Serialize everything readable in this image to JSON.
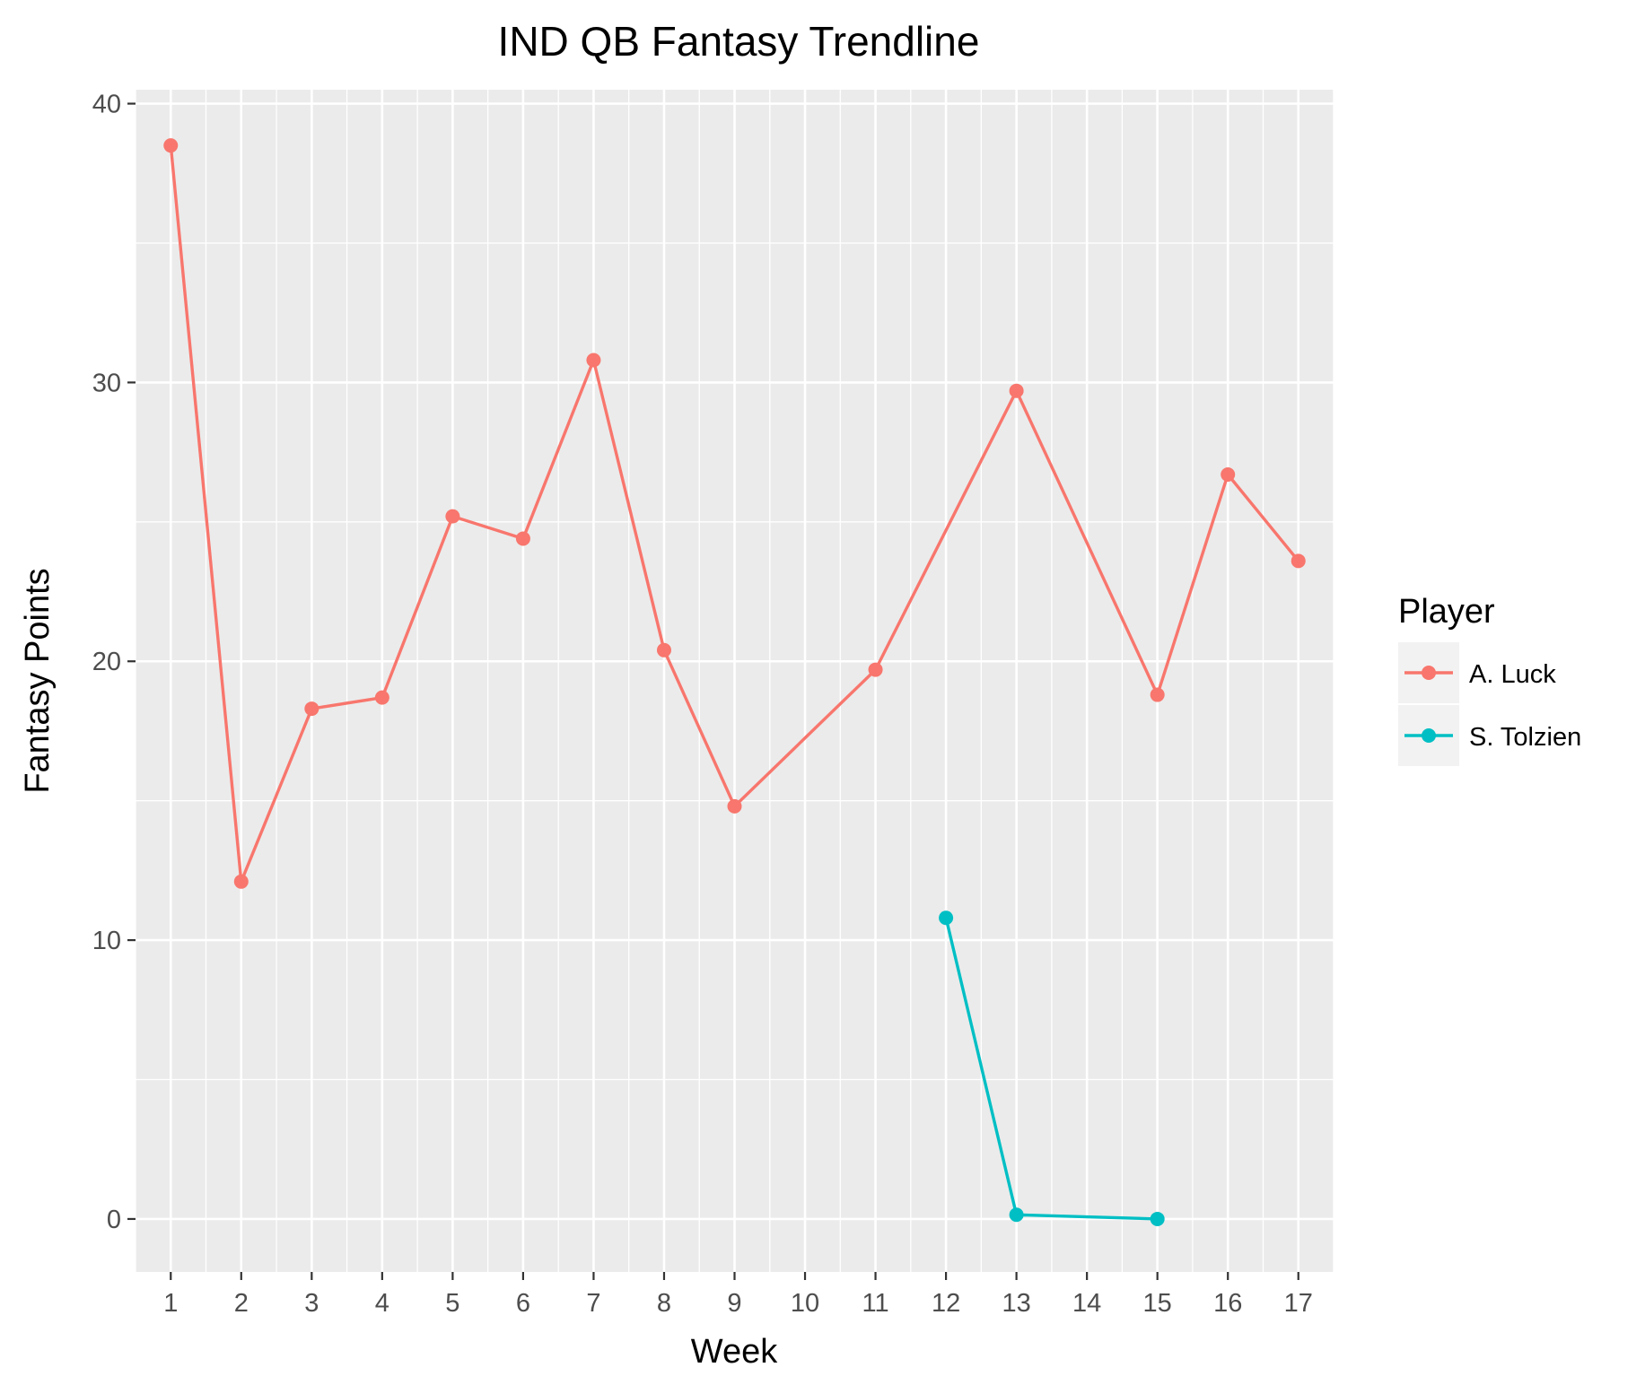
{
  "chart_data": {
    "type": "line",
    "title": "IND QB Fantasy Trendline",
    "xlabel": "Week",
    "ylabel": "Fantasy Points",
    "x_ticks": [
      "1",
      "2",
      "3",
      "4",
      "5",
      "6",
      "7",
      "8",
      "9",
      "10",
      "11",
      "12",
      "13",
      "14",
      "15",
      "16",
      "17"
    ],
    "xlim": [
      0.5,
      17.5
    ],
    "y_ticks": [
      0,
      10,
      20,
      30,
      40
    ],
    "ylim": [
      -1.9,
      40.5
    ],
    "grid": true,
    "legend": {
      "title": "Player",
      "position": "right"
    },
    "series": [
      {
        "name": "A. Luck",
        "color": "#F8766D",
        "points": [
          {
            "x": 1,
            "y": 38.5
          },
          {
            "x": 2,
            "y": 12.1
          },
          {
            "x": 3,
            "y": 18.3
          },
          {
            "x": 4,
            "y": 18.7
          },
          {
            "x": 5,
            "y": 25.2
          },
          {
            "x": 6,
            "y": 24.4
          },
          {
            "x": 7,
            "y": 30.8
          },
          {
            "x": 8,
            "y": 20.4
          },
          {
            "x": 9,
            "y": 14.8
          },
          {
            "x": 11,
            "y": 19.7
          },
          {
            "x": 13,
            "y": 29.7
          },
          {
            "x": 15,
            "y": 18.8
          },
          {
            "x": 16,
            "y": 26.7
          },
          {
            "x": 17,
            "y": 23.6
          }
        ]
      },
      {
        "name": "S. Tolzien",
        "color": "#00BFC4",
        "points": [
          {
            "x": 12,
            "y": 10.8
          },
          {
            "x": 13,
            "y": 0.15
          },
          {
            "x": 15,
            "y": 0.0
          }
        ]
      }
    ]
  }
}
